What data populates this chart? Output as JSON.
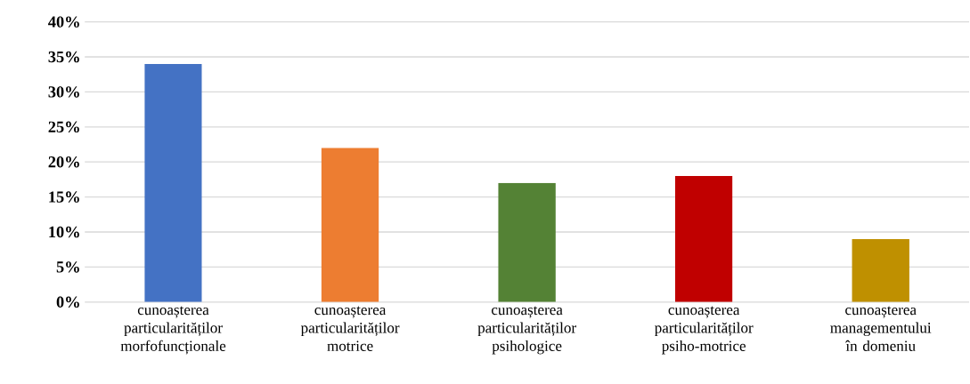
{
  "chart_data": {
    "type": "bar",
    "categories": [
      "cunoașterea particularităților morfofuncționale",
      "cunoașterea particularităților motrice",
      "cunoașterea particularităților psihologice",
      "cunoașterea particularităților psiho-motrice",
      "cunoașterea managementului în domeniu"
    ],
    "values": [
      34,
      22,
      17,
      18,
      9
    ],
    "colors": [
      "#4472c4",
      "#ed7d31",
      "#548235",
      "#c00000",
      "#bf9000"
    ],
    "ylim": [
      0,
      40
    ],
    "yticks": [
      {
        "value": 0,
        "label": "0%"
      },
      {
        "value": 5,
        "label": "5%"
      },
      {
        "value": 10,
        "label": "10%"
      },
      {
        "value": 15,
        "label": "15%"
      },
      {
        "value": 20,
        "label": "20%"
      },
      {
        "value": 25,
        "label": "25%"
      },
      {
        "value": 30,
        "label": "30%"
      },
      {
        "value": 35,
        "label": "35%"
      },
      {
        "value": 40,
        "label": "40%"
      }
    ],
    "grid": "y"
  }
}
